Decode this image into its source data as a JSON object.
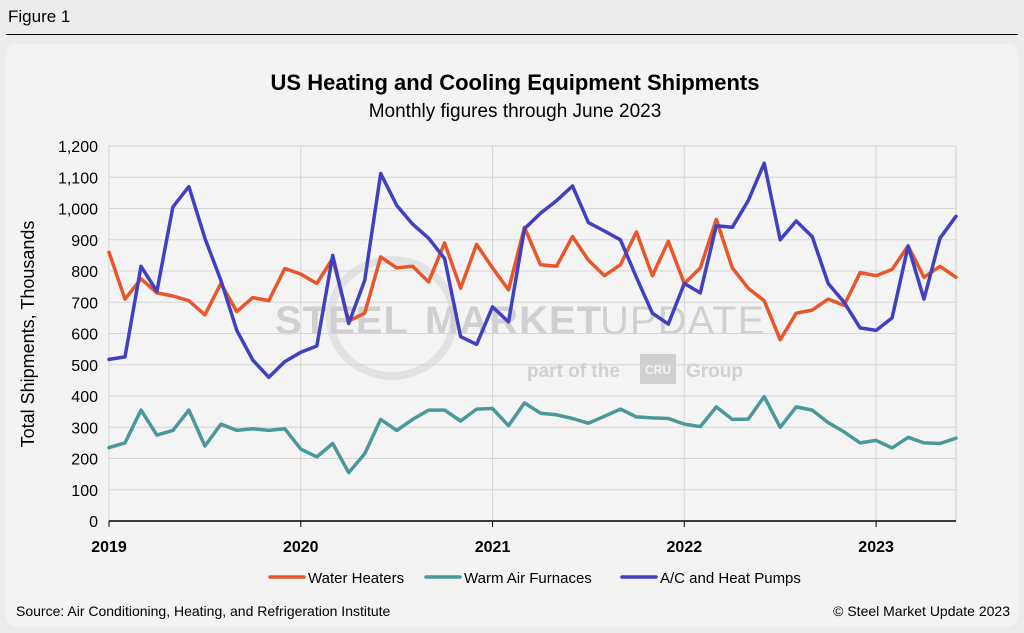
{
  "figure_label": "Figure 1",
  "source_text": "Source: Air Conditioning, Heating, and Refrigeration Institute",
  "copyright_text": "© Steel Market Update 2023",
  "watermark": {
    "brand_a": "STEEL",
    "brand_b": "MARKET",
    "brand_c": "UPDATE",
    "part_of": "part of the",
    "logo": "CRU",
    "group": "Group"
  },
  "chart_data": {
    "type": "line",
    "title": "US Heating and Cooling Equipment Shipments",
    "subtitle": "Monthly figures through June 2023",
    "ylabel": "Total Shipments, Thousands",
    "xlabel": "",
    "ylim": [
      0,
      1200
    ],
    "yticks": [
      0,
      100,
      200,
      300,
      400,
      500,
      600,
      700,
      800,
      900,
      1000,
      1100,
      1200
    ],
    "ytick_labels": [
      "0",
      "100",
      "200",
      "300",
      "400",
      "500",
      "600",
      "700",
      "800",
      "900",
      "1,000",
      "1,100",
      "1,200"
    ],
    "x_start": "2019-01",
    "n_points": 54,
    "year_ticks": [
      {
        "label": "2019",
        "index": 0
      },
      {
        "label": "2020",
        "index": 12
      },
      {
        "label": "2021",
        "index": 24
      },
      {
        "label": "2022",
        "index": 36
      },
      {
        "label": "2023",
        "index": 48
      }
    ],
    "grid": true,
    "legend_position": "bottom",
    "series": [
      {
        "name": "Water Heaters",
        "color": "#e8562a",
        "values": [
          860,
          710,
          775,
          730,
          720,
          705,
          660,
          760,
          670,
          715,
          705,
          808,
          790,
          760,
          840,
          640,
          665,
          845,
          810,
          815,
          765,
          890,
          745,
          885,
          810,
          740,
          940,
          820,
          815,
          910,
          835,
          785,
          820,
          925,
          785,
          895,
          760,
          810,
          965,
          810,
          745,
          705,
          580,
          665,
          675,
          710,
          690,
          795,
          785,
          805,
          880,
          780,
          815,
          780
        ]
      },
      {
        "name": "Warm Air Furnaces",
        "color": "#4a9898",
        "values": [
          235,
          250,
          355,
          275,
          290,
          355,
          240,
          310,
          290,
          295,
          290,
          295,
          230,
          205,
          248,
          155,
          215,
          325,
          290,
          325,
          355,
          355,
          320,
          358,
          360,
          305,
          378,
          345,
          340,
          328,
          313,
          335,
          358,
          333,
          330,
          328,
          310,
          302,
          365,
          325,
          326,
          398,
          300,
          365,
          355,
          315,
          285,
          250,
          258,
          234,
          268,
          250,
          248,
          265
        ]
      },
      {
        "name": "A/C and Heat Pumps",
        "color": "#4040c0",
        "values": [
          517,
          525,
          815,
          735,
          1005,
          1070,
          905,
          770,
          610,
          515,
          460,
          510,
          540,
          560,
          850,
          632,
          770,
          1112,
          1010,
          950,
          905,
          840,
          590,
          565,
          685,
          637,
          935,
          985,
          1025,
          1072,
          955,
          928,
          900,
          780,
          665,
          630,
          760,
          730,
          945,
          940,
          1025,
          1145,
          900,
          960,
          910,
          760,
          700,
          618,
          610,
          650,
          880,
          710,
          905,
          975
        ]
      }
    ]
  }
}
